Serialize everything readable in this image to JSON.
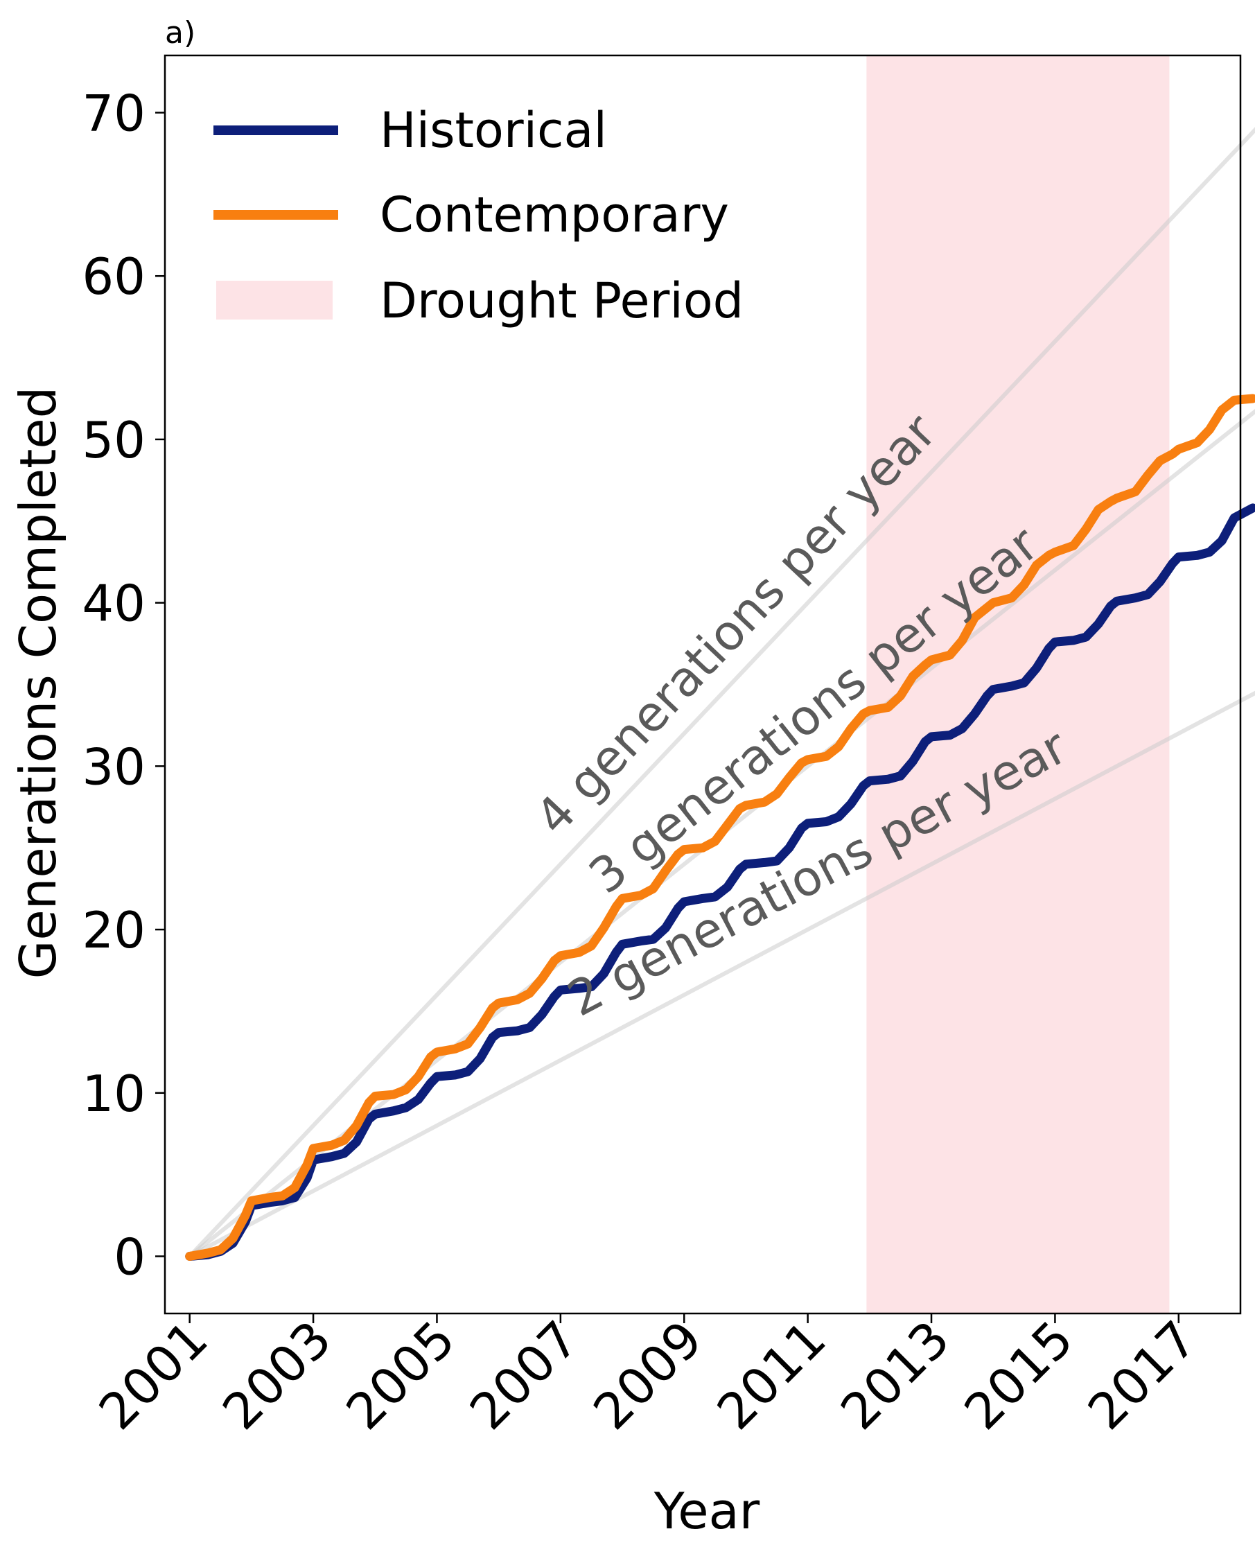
{
  "chart_data": {
    "type": "line",
    "panel_label": "a)",
    "xlabel": "Year",
    "ylabel": "Generations Completed",
    "xlim": [
      2000.6,
      2018.0
    ],
    "ylim": [
      -3.5,
      73.5
    ],
    "x_ticks": [
      {
        "value": 2001,
        "label": "2001"
      },
      {
        "value": 2003,
        "label": "2003"
      },
      {
        "value": 2005,
        "label": "2005"
      },
      {
        "value": 2007,
        "label": "2007"
      },
      {
        "value": 2009,
        "label": "2009"
      },
      {
        "value": 2011,
        "label": "2011"
      },
      {
        "value": 2013,
        "label": "2013"
      },
      {
        "value": 2015,
        "label": "2015"
      },
      {
        "value": 2017,
        "label": "2017"
      }
    ],
    "y_ticks": [
      {
        "value": 0,
        "label": "0"
      },
      {
        "value": 10,
        "label": "10"
      },
      {
        "value": 20,
        "label": "20"
      },
      {
        "value": 30,
        "label": "30"
      },
      {
        "value": 40,
        "label": "40"
      },
      {
        "value": 50,
        "label": "50"
      },
      {
        "value": 60,
        "label": "60"
      },
      {
        "value": 70,
        "label": "70"
      }
    ],
    "drought_period": {
      "label": "Drought Period",
      "x_start": 2011.95,
      "x_end": 2016.85,
      "color": "#fde3e6"
    },
    "series": [
      {
        "name": "Historical",
        "color": "#0d1f7a",
        "x": [
          2001.0,
          2001.3,
          2001.5,
          2001.7,
          2001.9,
          2002.0,
          2002.3,
          2002.5,
          2002.7,
          2002.9,
          2003.0,
          2003.3,
          2003.5,
          2003.7,
          2003.9,
          2004.0,
          2004.3,
          2004.5,
          2004.7,
          2004.9,
          2005.0,
          2005.3,
          2005.5,
          2005.7,
          2005.9,
          2006.0,
          2006.3,
          2006.5,
          2006.7,
          2006.9,
          2007.0,
          2007.3,
          2007.5,
          2007.7,
          2007.9,
          2008.0,
          2008.3,
          2008.5,
          2008.7,
          2008.9,
          2009.0,
          2009.3,
          2009.5,
          2009.7,
          2009.9,
          2010.0,
          2010.3,
          2010.5,
          2010.7,
          2010.9,
          2011.0,
          2011.3,
          2011.5,
          2011.7,
          2011.9,
          2012.0,
          2012.3,
          2012.5,
          2012.7,
          2012.9,
          2013.0,
          2013.3,
          2013.5,
          2013.7,
          2013.9,
          2014.0,
          2014.3,
          2014.5,
          2014.7,
          2014.9,
          2015.0,
          2015.3,
          2015.5,
          2015.7,
          2015.9,
          2016.0,
          2016.3,
          2016.5,
          2016.7,
          2016.9,
          2017.0,
          2017.3,
          2017.5,
          2017.7,
          2017.9,
          2018.2
        ],
        "values": [
          0.0,
          0.1,
          0.3,
          0.8,
          2.1,
          3.1,
          3.3,
          3.4,
          3.6,
          4.8,
          5.9,
          6.1,
          6.3,
          7.0,
          8.4,
          8.7,
          8.9,
          9.1,
          9.6,
          10.6,
          11.0,
          11.1,
          11.3,
          12.1,
          13.4,
          13.7,
          13.8,
          14.0,
          14.8,
          15.9,
          16.3,
          16.4,
          16.5,
          17.3,
          18.6,
          19.1,
          19.3,
          19.4,
          20.1,
          21.3,
          21.7,
          21.9,
          22.0,
          22.6,
          23.7,
          24.0,
          24.1,
          24.2,
          25.0,
          26.2,
          26.5,
          26.6,
          26.9,
          27.7,
          28.8,
          29.1,
          29.2,
          29.4,
          30.3,
          31.5,
          31.8,
          31.9,
          32.3,
          33.2,
          34.3,
          34.7,
          34.9,
          35.1,
          36.0,
          37.2,
          37.6,
          37.7,
          37.9,
          38.7,
          39.8,
          40.1,
          40.3,
          40.5,
          41.3,
          42.4,
          42.8,
          42.9,
          43.1,
          43.8,
          45.2,
          45.8
        ]
      },
      {
        "name": "Contemporary",
        "color": "#f87f10",
        "x": [
          2001.0,
          2001.3,
          2001.5,
          2001.7,
          2001.9,
          2002.0,
          2002.3,
          2002.5,
          2002.7,
          2002.9,
          2003.0,
          2003.3,
          2003.5,
          2003.7,
          2003.9,
          2004.0,
          2004.3,
          2004.5,
          2004.7,
          2004.9,
          2005.0,
          2005.3,
          2005.5,
          2005.7,
          2005.9,
          2006.0,
          2006.3,
          2006.5,
          2006.7,
          2006.9,
          2007.0,
          2007.3,
          2007.5,
          2007.7,
          2007.9,
          2008.0,
          2008.3,
          2008.5,
          2008.7,
          2008.9,
          2009.0,
          2009.3,
          2009.5,
          2009.7,
          2009.9,
          2010.0,
          2010.3,
          2010.5,
          2010.7,
          2010.9,
          2011.0,
          2011.3,
          2011.5,
          2011.7,
          2011.9,
          2012.0,
          2012.3,
          2012.5,
          2012.7,
          2012.9,
          2013.0,
          2013.3,
          2013.5,
          2013.7,
          2013.9,
          2014.0,
          2014.3,
          2014.5,
          2014.7,
          2014.9,
          2015.0,
          2015.3,
          2015.5,
          2015.7,
          2015.9,
          2016.0,
          2016.3,
          2016.5,
          2016.7,
          2016.9,
          2017.0,
          2017.3,
          2017.5,
          2017.7,
          2017.9,
          2018.2
        ],
        "values": [
          0.0,
          0.2,
          0.4,
          1.1,
          2.5,
          3.4,
          3.6,
          3.7,
          4.2,
          5.6,
          6.6,
          6.8,
          7.1,
          8.0,
          9.4,
          9.8,
          9.9,
          10.2,
          11.0,
          12.2,
          12.5,
          12.7,
          13.0,
          14.0,
          15.2,
          15.5,
          15.7,
          16.1,
          17.0,
          18.1,
          18.4,
          18.6,
          19.0,
          20.1,
          21.4,
          21.9,
          22.1,
          22.5,
          23.6,
          24.6,
          24.9,
          25.0,
          25.4,
          26.4,
          27.4,
          27.6,
          27.8,
          28.3,
          29.3,
          30.2,
          30.4,
          30.6,
          31.2,
          32.3,
          33.2,
          33.4,
          33.6,
          34.3,
          35.5,
          36.2,
          36.5,
          36.8,
          37.7,
          39.1,
          39.7,
          40.0,
          40.3,
          41.1,
          42.3,
          42.9,
          43.1,
          43.5,
          44.5,
          45.7,
          46.2,
          46.4,
          46.8,
          47.8,
          48.7,
          49.1,
          49.4,
          49.8,
          50.6,
          51.8,
          52.4,
          52.5
        ]
      }
    ],
    "reference_lines": [
      {
        "label": "4 generations per year",
        "slope": 4,
        "x_start": 2001.0,
        "x_end": 2018.5,
        "color": "#cccccc"
      },
      {
        "label": "3 generations per year",
        "slope": 3,
        "x_start": 2001.0,
        "x_end": 2018.5,
        "color": "#cccccc"
      },
      {
        "label": "2 generations per year",
        "slope": 2,
        "x_start": 2001.0,
        "x_end": 2018.5,
        "color": "#cccccc"
      }
    ],
    "legend": {
      "placement": "top-left",
      "entries": [
        "Historical",
        "Contemporary",
        "Drought Period"
      ]
    },
    "grid": false
  }
}
